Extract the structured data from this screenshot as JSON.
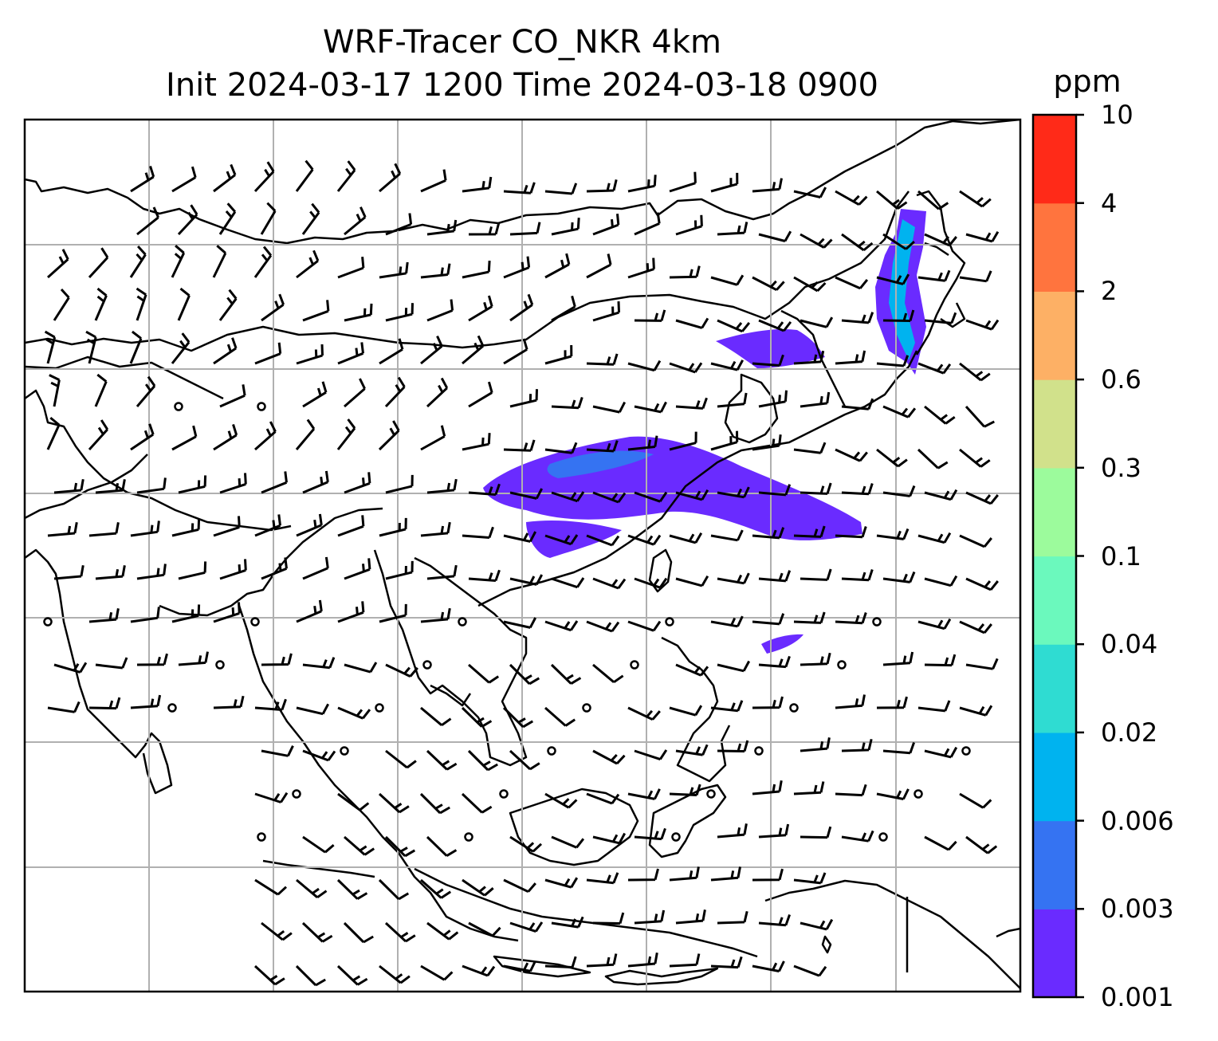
{
  "title": {
    "line1": "WRF-Tracer CO_NKR 4km",
    "line2": "Init 2024-03-17 1200 Time 2024-03-18 0900"
  },
  "colorbar": {
    "unit": "ppm",
    "levels": [
      "0.001",
      "0.003",
      "0.006",
      "0.02",
      "0.04",
      "0.1",
      "0.3",
      "0.6",
      "2",
      "4",
      "10"
    ],
    "colors": [
      "#6a2bff",
      "#3573f2",
      "#00b3ef",
      "#2fdcd2",
      "#6bf9bd",
      "#9cfb9c",
      "#d1e18b",
      "#fdb065",
      "#ff743e",
      "#ff2a18"
    ]
  },
  "map": {
    "plume_color": "#6a2bff",
    "plume_core_color": "#3573f2",
    "coastline_color": "#000000",
    "gridline_color": "#b0b0b0"
  }
}
